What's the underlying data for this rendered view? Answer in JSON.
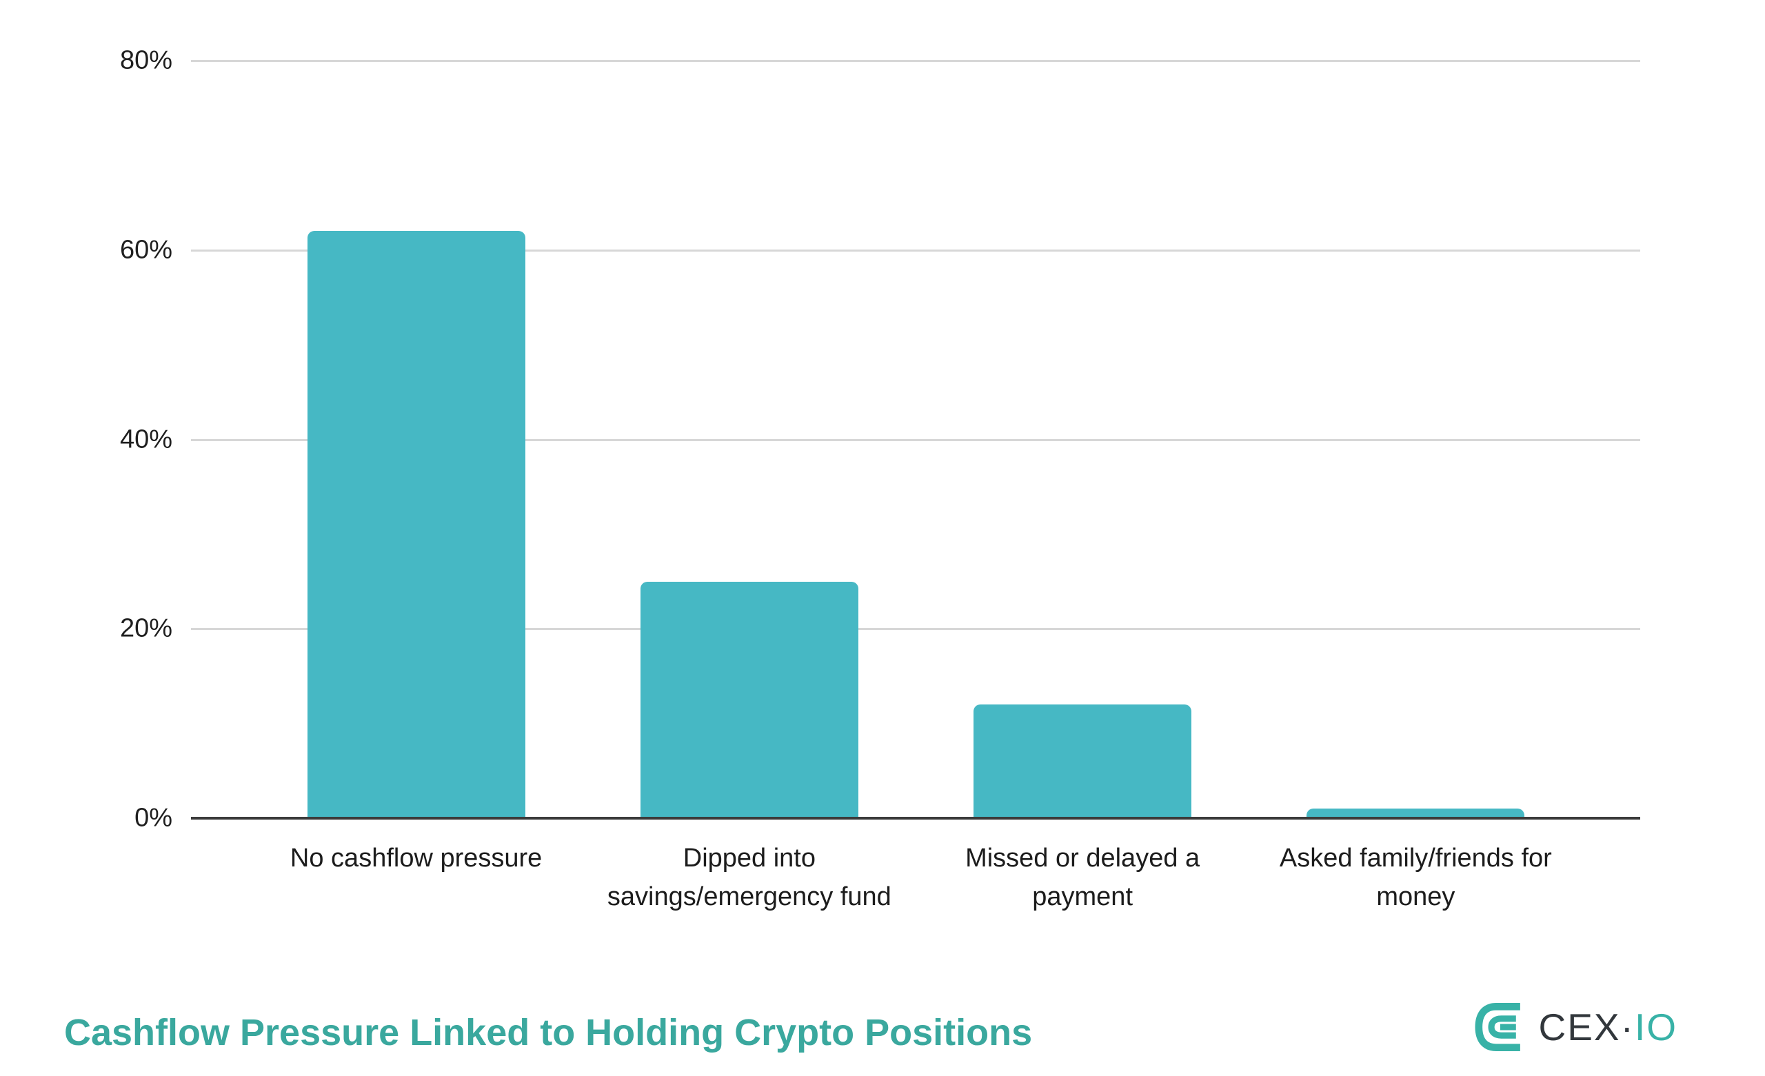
{
  "chart_data": {
    "type": "bar",
    "title": "Cashflow Pressure Linked to Holding Crypto Positions",
    "categories": [
      "No cashflow pressure",
      "Dipped into savings/emergency fund",
      "Missed or delayed a payment",
      "Asked family/friends for money"
    ],
    "values": [
      62,
      25,
      12,
      1
    ],
    "xlabel": "",
    "ylabel": "",
    "ylim": [
      0,
      80
    ],
    "yticks": [
      0,
      20,
      40,
      60,
      80
    ],
    "ytick_suffix": "%",
    "grid": true,
    "legend": false,
    "bar_color": "#46b8c4"
  },
  "footer": {
    "logo": {
      "text_primary": "CEX",
      "separator": "·",
      "text_accent": "IO"
    }
  },
  "colors": {
    "bar": "#46b8c4",
    "title": "#3aa89e",
    "logo_accent": "#38b2a7",
    "logo_text": "#32373c",
    "gridline": "#d7d7d7",
    "axis_line": "#3b3b3b",
    "label_text": "#1c1c1c"
  }
}
